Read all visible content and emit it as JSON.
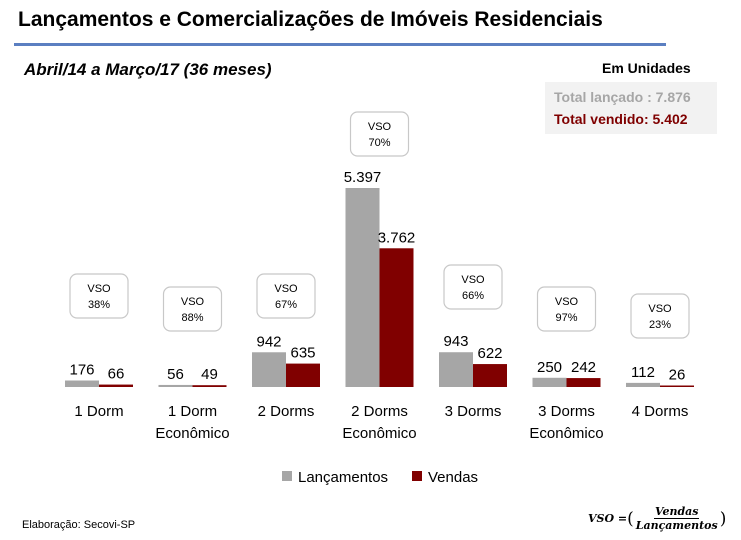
{
  "header": {
    "title": "Lançamentos e Comercializações de Imóveis Residenciais",
    "period": "Abril/14 a  Março/17 (36 meses)",
    "units_note": "Em Unidades",
    "total_launched": "Total lançado : 7.876",
    "total_sold": "Total vendido: 5.402"
  },
  "chart_data": {
    "type": "bar",
    "categories": [
      [
        "1 Dorm"
      ],
      [
        "1 Dorm",
        "Econômico"
      ],
      [
        "2 Dorms"
      ],
      [
        "2 Dorms",
        "Econômico"
      ],
      [
        "3 Dorms"
      ],
      [
        "3 Dorms",
        "Econômico"
      ],
      [
        "4 Dorms"
      ]
    ],
    "series": [
      {
        "name": "Lançamentos",
        "color": "#a6a6a6",
        "values": [
          176,
          56,
          942,
          5397,
          943,
          250,
          112
        ],
        "labels": [
          "176",
          "56",
          "942",
          "5.397",
          "943",
          "250",
          "112"
        ]
      },
      {
        "name": "Vendas",
        "color": "#800000",
        "values": [
          66,
          49,
          635,
          3762,
          622,
          242,
          26
        ],
        "labels": [
          "66",
          "49",
          "635",
          "3.762",
          "622",
          "242",
          "26"
        ]
      }
    ],
    "vso": [
      {
        "label": "VSO",
        "value": "38%"
      },
      {
        "label": "VSO",
        "value": "88%"
      },
      {
        "label": "VSO",
        "value": "67%"
      },
      {
        "label": "VSO",
        "value": "70%"
      },
      {
        "label": "VSO",
        "value": "66%"
      },
      {
        "label": "VSO",
        "value": "97%"
      },
      {
        "label": "VSO",
        "value": "23%"
      }
    ],
    "legend_position": "bottom",
    "ylim": [
      0,
      5397
    ]
  },
  "footer": {
    "source": "Elaboração: Secovi-SP",
    "formula_lhs": "VSO = ",
    "formula_num": "Vendas",
    "formula_den": "Lançamentos",
    "paren_open": "(",
    "paren_close": ")"
  }
}
